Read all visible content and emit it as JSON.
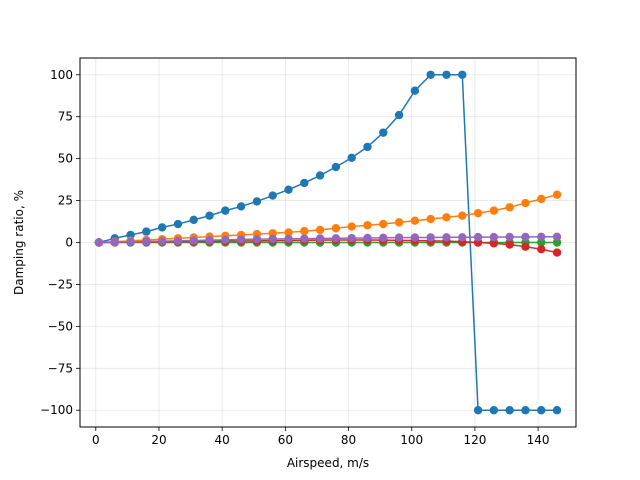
{
  "chart_data": {
    "type": "line",
    "title": "",
    "xlabel": "Airspeed, m/s",
    "ylabel": "Damping ratio, %",
    "xlim": [
      -5,
      152
    ],
    "ylim": [
      -110,
      110
    ],
    "xticks": [
      0,
      20,
      40,
      60,
      80,
      100,
      120,
      140
    ],
    "yticks": [
      -100,
      -75,
      -50,
      -25,
      0,
      25,
      50,
      75,
      100
    ],
    "grid": true,
    "legend": "none",
    "x": [
      1,
      6,
      11,
      16,
      21,
      26,
      31,
      36,
      41,
      46,
      51,
      56,
      61,
      66,
      71,
      76,
      81,
      86,
      91,
      96,
      101,
      106,
      111,
      116,
      121,
      126,
      131,
      136,
      141,
      146
    ],
    "series": [
      {
        "color": "#1f77b4",
        "values": [
          0,
          2.5,
          4.5,
          6.5,
          9,
          11,
          13.5,
          16,
          19,
          21.5,
          24.5,
          28,
          31.5,
          35.5,
          40,
          45,
          50.5,
          57,
          65.5,
          76,
          90.5,
          100,
          100,
          100,
          -100,
          -100,
          -100,
          -100,
          -100,
          -100
        ]
      },
      {
        "color": "#ff7f0e",
        "values": [
          0,
          0.5,
          1,
          1.5,
          2,
          2.5,
          3,
          3.5,
          4,
          4.5,
          5,
          5.5,
          6,
          6.8,
          7.5,
          8.5,
          9.5,
          10.3,
          11,
          12,
          13,
          14,
          15,
          16,
          17.5,
          19,
          21,
          23.5,
          26,
          28.5
        ]
      },
      {
        "color": "#2ca02c",
        "values": [
          0,
          0,
          0,
          0,
          0,
          0,
          0,
          0,
          0,
          0,
          0,
          0,
          0,
          0,
          0,
          0,
          0,
          0,
          0,
          0,
          0,
          0,
          0,
          0,
          0,
          0,
          0,
          0,
          0,
          0
        ]
      },
      {
        "color": "#d62728",
        "values": [
          0,
          0.1,
          0.2,
          0.3,
          0.4,
          0.5,
          0.6,
          0.7,
          0.8,
          0.9,
          1,
          1.1,
          1.2,
          1.3,
          1.4,
          1.5,
          1.5,
          1.5,
          1.4,
          1.3,
          1.2,
          1,
          0.8,
          0.5,
          0,
          -0.5,
          -1.2,
          -2.5,
          -4,
          -6
        ]
      },
      {
        "color": "#9467bd",
        "values": [
          0,
          0.2,
          0.4,
          0.6,
          0.8,
          1,
          1.2,
          1.4,
          1.6,
          1.8,
          2,
          2.1,
          2.2,
          2.3,
          2.4,
          2.5,
          2.6,
          2.7,
          2.8,
          2.9,
          3,
          3,
          3.1,
          3.1,
          3.2,
          3.2,
          3.3,
          3.3,
          3.4,
          3.4
        ]
      }
    ]
  }
}
